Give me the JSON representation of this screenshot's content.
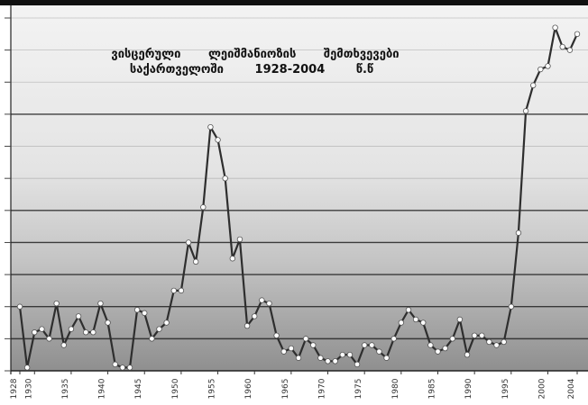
{
  "chart_data": {
    "type": "line",
    "title_lines": [
      "ვისცერული ლეიშმანიოზის შემთხვევები",
      "საქართველოში 1928-2004 წ.წ"
    ],
    "x": [
      1928,
      1929,
      1930,
      1931,
      1932,
      1933,
      1934,
      1935,
      1936,
      1937,
      1938,
      1939,
      1940,
      1941,
      1942,
      1943,
      1944,
      1945,
      1946,
      1947,
      1948,
      1949,
      1950,
      1951,
      1952,
      1953,
      1954,
      1955,
      1956,
      1957,
      1958,
      1959,
      1960,
      1961,
      1962,
      1963,
      1964,
      1965,
      1966,
      1967,
      1968,
      1969,
      1970,
      1971,
      1972,
      1973,
      1974,
      1975,
      1976,
      1977,
      1978,
      1979,
      1980,
      1981,
      1982,
      1983,
      1984,
      1985,
      1986,
      1987,
      1988,
      1989,
      1990,
      1991,
      1992,
      1993,
      1994,
      1995,
      1996,
      1997,
      1998,
      1999,
      2000,
      2001,
      2002,
      2003,
      2004
    ],
    "series": [
      {
        "values": [
          2.0,
          0.1,
          1.2,
          1.3,
          1.0,
          2.1,
          0.8,
          1.3,
          1.7,
          1.2,
          1.2,
          2.1,
          1.5,
          0.2,
          0.1,
          0.1,
          1.9,
          1.8,
          1.0,
          1.3,
          1.5,
          2.5,
          2.5,
          4.0,
          3.4,
          5.1,
          7.6,
          7.2,
          6.0,
          3.5,
          4.1,
          1.4,
          1.7,
          2.2,
          2.1,
          1.1,
          0.6,
          0.7,
          0.4,
          1.0,
          0.8,
          0.4,
          0.3,
          0.3,
          0.5,
          0.5,
          0.2,
          0.8,
          0.8,
          0.6,
          0.4,
          1.0,
          1.5,
          1.9,
          1.6,
          1.5,
          0.8,
          0.6,
          0.7,
          1.0,
          1.6,
          0.5,
          1.1,
          1.1,
          0.9,
          0.8,
          0.9,
          2.0,
          4.3,
          8.1,
          8.9,
          9.4,
          9.5,
          10.7,
          10.1,
          10.0,
          10.5
        ]
      }
    ],
    "x_ticks": [
      1928,
      1930,
      1935,
      1940,
      1945,
      1950,
      1955,
      1960,
      1965,
      1970,
      1975,
      1980,
      1985,
      1990,
      1995,
      2000,
      2004
    ],
    "xlim": [
      1928,
      2004
    ],
    "ylim": [
      0,
      11
    ],
    "grid": true,
    "colors": {
      "line": "#2e2e2e",
      "marker": "#ffffff",
      "marker_edge": "#555555",
      "frame": "#111111",
      "grid_strong": "#2b2b2b",
      "grid_light": "#9a9a9a"
    }
  }
}
